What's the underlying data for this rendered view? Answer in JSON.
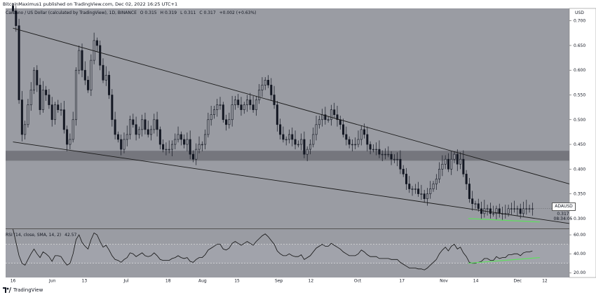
{
  "header": {
    "publisher_line": "BitcoinMaximus1 published on TradingView.com, Dec 02, 2022 16:25 UTC+1"
  },
  "symbol_info": {
    "name": "Cardano / US Dollar (calculated by TradingView), 1D, BINANCE",
    "open": "O 0.315",
    "high": "H 0.319",
    "low": "L 0.311",
    "close": "C 0.317",
    "change": "+0.002 (+0.63%)"
  },
  "rsi_info": {
    "label": "RSI (14, close, SMA, 14, 2)",
    "value": "42.57"
  },
  "price_tag": {
    "ticker": "ADAUSD",
    "price": "0.317",
    "countdown": "08:34:05"
  },
  "footer": {
    "brand": "TradingView"
  },
  "colors": {
    "chart_bg": "#9a9ca3",
    "candle": "#131722",
    "support_zone": "#6e7077",
    "divergence": "#5ee05e",
    "axis_bg": "#ffffff"
  },
  "chart_data": [
    {
      "type": "candlestick",
      "currency": "USD",
      "y_axis_ticks": [
        "0.700",
        "0.650",
        "0.600",
        "0.550",
        "0.500",
        "0.450",
        "0.400",
        "0.350",
        "0.300"
      ],
      "ylim": [
        0.28,
        0.725
      ],
      "x_axis_ticks": [
        "16",
        "Jun",
        "13",
        "Jul",
        "18",
        "Aug",
        "15",
        "Sep",
        "12",
        "Oct",
        "17",
        "Nov",
        "14",
        "Dec",
        "12"
      ],
      "x_tick_days": [
        0,
        16,
        29,
        46,
        63,
        77,
        91,
        108,
        121,
        140,
        158,
        175,
        188,
        205,
        216
      ],
      "x_range_days": [
        -3,
        226
      ],
      "closes": [
        0.72,
        0.69,
        0.54,
        0.47,
        0.49,
        0.53,
        0.56,
        0.6,
        0.57,
        0.52,
        0.56,
        0.55,
        0.53,
        0.5,
        0.53,
        0.52,
        0.52,
        0.48,
        0.45,
        0.46,
        0.5,
        0.6,
        0.64,
        0.6,
        0.58,
        0.56,
        0.62,
        0.66,
        0.65,
        0.61,
        0.58,
        0.59,
        0.55,
        0.5,
        0.47,
        0.46,
        0.44,
        0.46,
        0.47,
        0.5,
        0.49,
        0.47,
        0.48,
        0.5,
        0.48,
        0.47,
        0.48,
        0.5,
        0.48,
        0.45,
        0.44,
        0.44,
        0.44,
        0.45,
        0.46,
        0.47,
        0.46,
        0.45,
        0.46,
        0.43,
        0.42,
        0.44,
        0.45,
        0.45,
        0.47,
        0.5,
        0.51,
        0.52,
        0.53,
        0.53,
        0.5,
        0.49,
        0.5,
        0.53,
        0.54,
        0.53,
        0.52,
        0.53,
        0.54,
        0.53,
        0.52,
        0.54,
        0.56,
        0.57,
        0.58,
        0.57,
        0.55,
        0.53,
        0.49,
        0.47,
        0.46,
        0.46,
        0.47,
        0.46,
        0.45,
        0.45,
        0.46,
        0.43,
        0.44,
        0.45,
        0.47,
        0.49,
        0.5,
        0.51,
        0.5,
        0.5,
        0.52,
        0.51,
        0.5,
        0.49,
        0.47,
        0.46,
        0.45,
        0.45,
        0.45,
        0.46,
        0.48,
        0.47,
        0.45,
        0.44,
        0.44,
        0.44,
        0.43,
        0.43,
        0.43,
        0.43,
        0.42,
        0.42,
        0.42,
        0.4,
        0.39,
        0.37,
        0.36,
        0.36,
        0.36,
        0.35,
        0.35,
        0.34,
        0.35,
        0.36,
        0.37,
        0.38,
        0.4,
        0.41,
        0.42,
        0.4,
        0.42,
        0.43,
        0.41,
        0.42,
        0.39,
        0.37,
        0.34,
        0.33,
        0.33,
        0.32,
        0.31,
        0.32,
        0.32,
        0.31,
        0.31,
        0.32,
        0.31,
        0.31,
        0.31,
        0.32,
        0.32,
        0.32,
        0.32,
        0.31,
        0.32,
        0.32,
        0.32,
        0.32
      ],
      "descending_wedge": {
        "upper": [
          [
            0,
            0.685
          ],
          [
            226,
            0.37
          ]
        ],
        "lower": [
          [
            0,
            0.455
          ],
          [
            226,
            0.29
          ]
        ]
      },
      "support_zone": [
        0.417,
        0.437
      ]
    },
    {
      "type": "line",
      "name": "RSI (14, close, SMA, 14, 2)",
      "y_axis_ticks": [
        "60.00",
        "40.00",
        "20.00"
      ],
      "ylim": [
        15,
        66
      ],
      "bands": [
        30,
        50
      ],
      "values": [
        66,
        52,
        38,
        30,
        28,
        34,
        40,
        45,
        40,
        36,
        42,
        40,
        37,
        32,
        38,
        38,
        37,
        32,
        28,
        30,
        40,
        55,
        60,
        52,
        48,
        45,
        55,
        62,
        60,
        53,
        47,
        49,
        44,
        38,
        34,
        33,
        31,
        34,
        36,
        41,
        40,
        37,
        39,
        41,
        38,
        37,
        38,
        41,
        38,
        34,
        33,
        33,
        33,
        35,
        36,
        38,
        36,
        35,
        36,
        32,
        31,
        34,
        36,
        36,
        39,
        44,
        46,
        48,
        50,
        50,
        45,
        44,
        46,
        51,
        53,
        51,
        49,
        51,
        53,
        51,
        49,
        53,
        56,
        59,
        61,
        58,
        54,
        50,
        43,
        40,
        38,
        38,
        40,
        38,
        37,
        37,
        39,
        34,
        36,
        38,
        42,
        46,
        48,
        50,
        48,
        48,
        51,
        49,
        47,
        45,
        42,
        40,
        38,
        38,
        38,
        40,
        44,
        42,
        39,
        37,
        37,
        37,
        35,
        35,
        35,
        35,
        34,
        34,
        34,
        31,
        29,
        27,
        25,
        25,
        25,
        24,
        24,
        23,
        25,
        28,
        31,
        34,
        40,
        44,
        47,
        43,
        48,
        50,
        45,
        47,
        41,
        37,
        31,
        30,
        30,
        31,
        32,
        35,
        35,
        33,
        33,
        37,
        35,
        36,
        36,
        39,
        39,
        40,
        40,
        38,
        41,
        42,
        42,
        43
      ],
      "divergence": [
        [
          185,
          30
        ],
        [
          214,
          36
        ]
      ]
    }
  ]
}
